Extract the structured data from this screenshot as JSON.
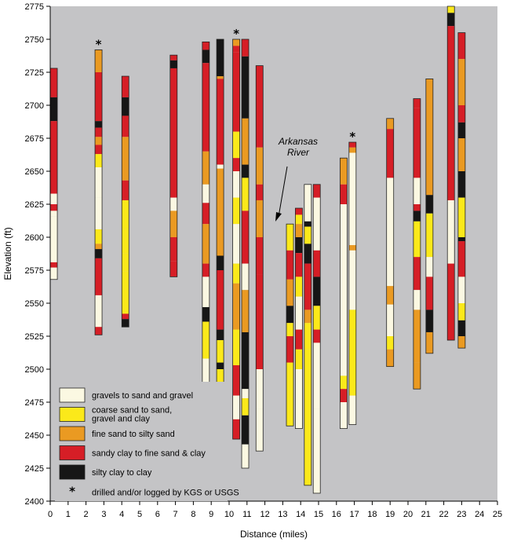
{
  "chart_data": {
    "type": "well-log columns",
    "xlabel": "Distance (miles)",
    "ylabel": "Elevation (ft)",
    "xlim": [
      0,
      25
    ],
    "ylim": [
      2400,
      2775
    ],
    "xticks": [
      0,
      1,
      2,
      3,
      4,
      5,
      6,
      7,
      8,
      9,
      10,
      11,
      12,
      13,
      14,
      15,
      16,
      17,
      18,
      19,
      20,
      21,
      22,
      23,
      24,
      25
    ],
    "yticks": [
      2400,
      2425,
      2450,
      2475,
      2500,
      2525,
      2550,
      2575,
      2600,
      2625,
      2650,
      2675,
      2700,
      2725,
      2750,
      2775
    ],
    "background": "#c4c4c6",
    "categories": [
      {
        "key": "g",
        "label": "gravels to sand and gravel",
        "color": "#fbf8e2"
      },
      {
        "key": "c",
        "label": "coarse sand to sand,\ngravel and clay",
        "color": "#fbe91a"
      },
      {
        "key": "f",
        "label": "fine sand to silty sand",
        "color": "#ea9a22"
      },
      {
        "key": "s",
        "label": "sandy clay to fine sand & clay",
        "color": "#d61e26"
      },
      {
        "key": "k",
        "label": "silty clay to clay",
        "color": "#161616"
      }
    ],
    "star_note": "drilled and/or logged by KGS or USGS",
    "annotation": "Arkansas\nRiver",
    "wells": [
      {
        "x": 0.2,
        "star": false,
        "layers": [
          [
            2728,
            2706,
            "s"
          ],
          [
            2706,
            2688,
            "k"
          ],
          [
            2688,
            2633,
            "s"
          ],
          [
            2633,
            2625,
            "g"
          ],
          [
            2625,
            2620,
            "s"
          ],
          [
            2620,
            2616,
            "g"
          ],
          [
            2616,
            2581,
            "g"
          ],
          [
            2581,
            2577,
            "s"
          ],
          [
            2577,
            2568,
            "g"
          ]
        ]
      },
      {
        "x": 2.7,
        "star": true,
        "layers": [
          [
            2742,
            2725,
            "f"
          ],
          [
            2725,
            2688,
            "s"
          ],
          [
            2688,
            2683,
            "k"
          ],
          [
            2683,
            2676,
            "s"
          ],
          [
            2676,
            2670,
            "f"
          ],
          [
            2670,
            2663,
            "s"
          ],
          [
            2663,
            2653,
            "c"
          ],
          [
            2653,
            2630,
            "g"
          ],
          [
            2630,
            2606,
            "g"
          ],
          [
            2606,
            2595,
            "c"
          ],
          [
            2595,
            2591,
            "f"
          ],
          [
            2591,
            2584,
            "k"
          ],
          [
            2584,
            2556,
            "s"
          ],
          [
            2556,
            2532,
            "g"
          ],
          [
            2532,
            2526,
            "s"
          ]
        ]
      },
      {
        "x": 4.2,
        "star": false,
        "layers": [
          [
            2722,
            2706,
            "s"
          ],
          [
            2706,
            2692,
            "k"
          ],
          [
            2692,
            2676,
            "s"
          ],
          [
            2676,
            2643,
            "f"
          ],
          [
            2643,
            2628,
            "s"
          ],
          [
            2628,
            2606,
            "c"
          ],
          [
            2606,
            2588,
            "c"
          ],
          [
            2588,
            2574,
            "c"
          ],
          [
            2574,
            2542,
            "c"
          ],
          [
            2542,
            2538,
            "s"
          ],
          [
            2538,
            2532,
            "k"
          ]
        ]
      },
      {
        "x": 6.9,
        "star": false,
        "layers": [
          [
            2738,
            2734,
            "s"
          ],
          [
            2734,
            2728,
            "k"
          ],
          [
            2728,
            2630,
            "s"
          ],
          [
            2630,
            2620,
            "g"
          ],
          [
            2620,
            2600,
            "f"
          ],
          [
            2600,
            2582,
            "s"
          ],
          [
            2582,
            2570,
            "s"
          ]
        ]
      },
      {
        "x": 8.7,
        "star": false,
        "layers": [
          [
            2748,
            2742,
            "s"
          ],
          [
            2742,
            2732,
            "k"
          ],
          [
            2732,
            2665,
            "s"
          ],
          [
            2665,
            2640,
            "f"
          ],
          [
            2640,
            2626,
            "g"
          ],
          [
            2626,
            2610,
            "s"
          ],
          [
            2610,
            2580,
            "f"
          ],
          [
            2580,
            2570,
            "s"
          ],
          [
            2570,
            2547,
            "g"
          ],
          [
            2547,
            2536,
            "k"
          ],
          [
            2536,
            2508,
            "c"
          ],
          [
            2508,
            2483,
            "g"
          ]
        ]
      },
      {
        "x": 9.5,
        "star": false,
        "layers": [
          [
            2750,
            2722,
            "k"
          ],
          [
            2722,
            2720,
            "f"
          ],
          [
            2720,
            2655,
            "s"
          ],
          [
            2655,
            2652,
            "g"
          ],
          [
            2652,
            2586,
            "f"
          ],
          [
            2586,
            2575,
            "k"
          ],
          [
            2575,
            2530,
            "s"
          ],
          [
            2530,
            2522,
            "k"
          ],
          [
            2522,
            2505,
            "c"
          ],
          [
            2505,
            2500,
            "k"
          ],
          [
            2500,
            2458,
            "c"
          ]
        ]
      },
      {
        "x": 10.4,
        "star": true,
        "layers": [
          [
            2750,
            2745,
            "f"
          ],
          [
            2745,
            2740,
            "s"
          ],
          [
            2740,
            2680,
            "s"
          ],
          [
            2680,
            2660,
            "c"
          ],
          [
            2660,
            2650,
            "s"
          ],
          [
            2650,
            2630,
            "g"
          ],
          [
            2630,
            2610,
            "c"
          ],
          [
            2610,
            2580,
            "g"
          ],
          [
            2580,
            2565,
            "c"
          ],
          [
            2565,
            2530,
            "f"
          ],
          [
            2530,
            2503,
            "c"
          ],
          [
            2503,
            2480,
            "s"
          ],
          [
            2480,
            2462,
            "g"
          ],
          [
            2462,
            2447,
            "s"
          ]
        ]
      },
      {
        "x": 10.9,
        "star": false,
        "layers": [
          [
            2750,
            2737,
            "s"
          ],
          [
            2737,
            2690,
            "k"
          ],
          [
            2690,
            2655,
            "f"
          ],
          [
            2655,
            2645,
            "k"
          ],
          [
            2645,
            2620,
            "c"
          ],
          [
            2620,
            2580,
            "s"
          ],
          [
            2580,
            2560,
            "g"
          ],
          [
            2560,
            2528,
            "f"
          ],
          [
            2528,
            2485,
            "k"
          ],
          [
            2485,
            2478,
            "g"
          ],
          [
            2478,
            2465,
            "c"
          ],
          [
            2465,
            2443,
            "k"
          ],
          [
            2443,
            2425,
            "g"
          ]
        ]
      },
      {
        "x": 11.7,
        "star": false,
        "layers": [
          [
            2730,
            2668,
            "s"
          ],
          [
            2668,
            2640,
            "f"
          ],
          [
            2640,
            2628,
            "s"
          ],
          [
            2628,
            2600,
            "f"
          ],
          [
            2600,
            2572,
            "s"
          ],
          [
            2572,
            2500,
            "s"
          ],
          [
            2500,
            2470,
            "g"
          ],
          [
            2470,
            2438,
            "g"
          ]
        ]
      },
      {
        "x": 13.4,
        "star": false,
        "layers": [
          [
            2610,
            2590,
            "c"
          ],
          [
            2590,
            2568,
            "s"
          ],
          [
            2568,
            2548,
            "f"
          ],
          [
            2548,
            2535,
            "k"
          ],
          [
            2535,
            2525,
            "c"
          ],
          [
            2525,
            2505,
            "s"
          ],
          [
            2505,
            2457,
            "c"
          ]
        ]
      },
      {
        "x": 13.9,
        "star": false,
        "layers": [
          [
            2622,
            2617,
            "s"
          ],
          [
            2617,
            2610,
            "c"
          ],
          [
            2610,
            2600,
            "f"
          ],
          [
            2600,
            2588,
            "k"
          ],
          [
            2588,
            2570,
            "s"
          ],
          [
            2570,
            2555,
            "c"
          ],
          [
            2555,
            2530,
            "g"
          ],
          [
            2530,
            2515,
            "s"
          ],
          [
            2515,
            2500,
            "c"
          ],
          [
            2500,
            2455,
            "g"
          ]
        ]
      },
      {
        "x": 14.4,
        "star": false,
        "layers": [
          [
            2640,
            2612,
            "g"
          ],
          [
            2612,
            2608,
            "k"
          ],
          [
            2608,
            2595,
            "c"
          ],
          [
            2595,
            2580,
            "k"
          ],
          [
            2580,
            2545,
            "s"
          ],
          [
            2545,
            2535,
            "f"
          ],
          [
            2535,
            2515,
            "c"
          ],
          [
            2515,
            2412,
            "c"
          ]
        ]
      },
      {
        "x": 14.9,
        "star": false,
        "layers": [
          [
            2640,
            2630,
            "s"
          ],
          [
            2630,
            2590,
            "g"
          ],
          [
            2590,
            2570,
            "s"
          ],
          [
            2570,
            2548,
            "k"
          ],
          [
            2548,
            2530,
            "c"
          ],
          [
            2530,
            2520,
            "s"
          ],
          [
            2520,
            2470,
            "g"
          ],
          [
            2470,
            2406,
            "g"
          ]
        ]
      },
      {
        "x": 16.4,
        "star": false,
        "layers": [
          [
            2660,
            2640,
            "f"
          ],
          [
            2640,
            2625,
            "s"
          ],
          [
            2625,
            2495,
            "g"
          ],
          [
            2495,
            2485,
            "c"
          ],
          [
            2485,
            2475,
            "s"
          ],
          [
            2475,
            2455,
            "g"
          ]
        ]
      },
      {
        "x": 16.9,
        "star": true,
        "layers": [
          [
            2672,
            2668,
            "s"
          ],
          [
            2668,
            2664,
            "f"
          ],
          [
            2664,
            2650,
            "g"
          ],
          [
            2650,
            2594,
            "g"
          ],
          [
            2594,
            2590,
            "f"
          ],
          [
            2590,
            2545,
            "g"
          ],
          [
            2545,
            2530,
            "c"
          ],
          [
            2530,
            2500,
            "c"
          ],
          [
            2500,
            2480,
            "c"
          ],
          [
            2480,
            2458,
            "g"
          ]
        ]
      },
      {
        "x": 19.0,
        "star": false,
        "layers": [
          [
            2690,
            2682,
            "f"
          ],
          [
            2682,
            2645,
            "s"
          ],
          [
            2645,
            2563,
            "g"
          ],
          [
            2563,
            2549,
            "f"
          ],
          [
            2549,
            2525,
            "g"
          ],
          [
            2525,
            2515,
            "c"
          ],
          [
            2515,
            2502,
            "f"
          ]
        ]
      },
      {
        "x": 20.5,
        "star": false,
        "layers": [
          [
            2705,
            2698,
            "s"
          ],
          [
            2698,
            2645,
            "s"
          ],
          [
            2645,
            2625,
            "g"
          ],
          [
            2625,
            2620,
            "s"
          ],
          [
            2620,
            2612,
            "k"
          ],
          [
            2612,
            2585,
            "c"
          ],
          [
            2585,
            2560,
            "s"
          ],
          [
            2560,
            2545,
            "g"
          ],
          [
            2545,
            2505,
            "f"
          ],
          [
            2505,
            2485,
            "f"
          ]
        ]
      },
      {
        "x": 21.2,
        "star": false,
        "layers": [
          [
            2720,
            2632,
            "f"
          ],
          [
            2632,
            2618,
            "k"
          ],
          [
            2618,
            2585,
            "c"
          ],
          [
            2585,
            2570,
            "g"
          ],
          [
            2570,
            2545,
            "s"
          ],
          [
            2545,
            2528,
            "k"
          ],
          [
            2528,
            2512,
            "f"
          ]
        ]
      },
      {
        "x": 22.4,
        "star": false,
        "layers": [
          [
            2775,
            2770,
            "c"
          ],
          [
            2770,
            2760,
            "k"
          ],
          [
            2760,
            2628,
            "s"
          ],
          [
            2628,
            2580,
            "g"
          ],
          [
            2580,
            2522,
            "s"
          ]
        ]
      },
      {
        "x": 23.0,
        "star": false,
        "layers": [
          [
            2755,
            2735,
            "s"
          ],
          [
            2735,
            2700,
            "f"
          ],
          [
            2700,
            2687,
            "s"
          ],
          [
            2687,
            2675,
            "k"
          ],
          [
            2675,
            2650,
            "f"
          ],
          [
            2650,
            2630,
            "k"
          ],
          [
            2630,
            2600,
            "c"
          ],
          [
            2600,
            2597,
            "k"
          ],
          [
            2597,
            2570,
            "s"
          ],
          [
            2570,
            2550,
            "g"
          ],
          [
            2550,
            2537,
            "c"
          ],
          [
            2537,
            2525,
            "k"
          ],
          [
            2525,
            2516,
            "f"
          ]
        ]
      }
    ]
  }
}
